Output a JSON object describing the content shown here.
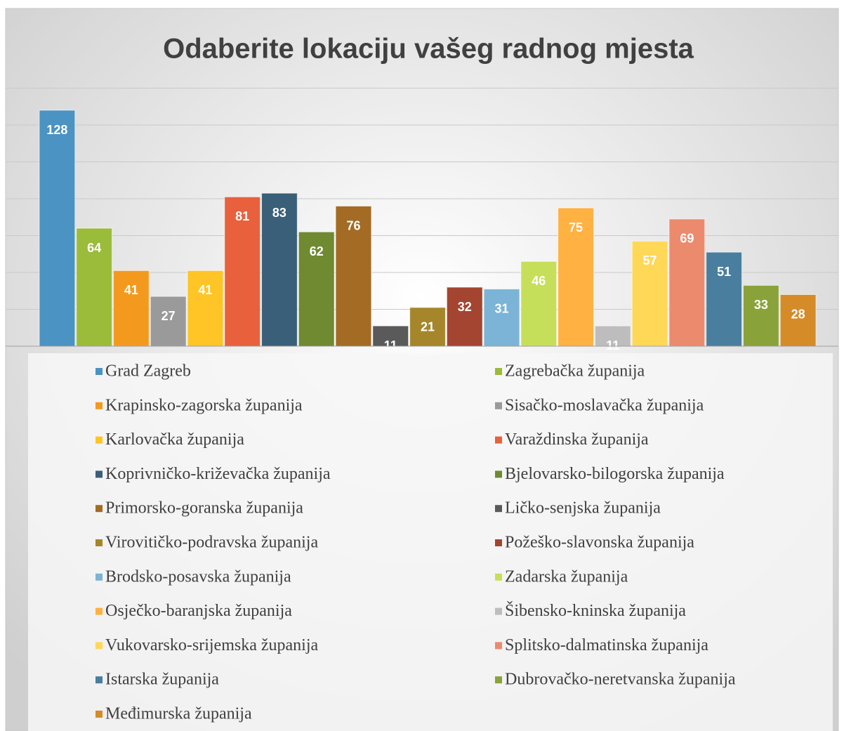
{
  "chart_data": {
    "type": "bar",
    "title": "Odaberite lokaciju vašeg radnog mjesta",
    "categories": [
      "Grad Zagreb",
      "Zagrebačka županija",
      "Krapinsko-zagorska županija",
      "Sisačko-moslavačka županija",
      "Karlovačka županija",
      "Varaždinska županija",
      "Koprivničko-križevačka županija",
      "Bjelovarsko-bilogorska županija",
      "Primorsko-goranska županija",
      "Ličko-senjska županija",
      "Virovitičko-podravska županija",
      "Požeško-slavonska županija",
      "Brodsko-posavska županija",
      "Zadarska županija",
      "Osječko-baranjska županija",
      "Šibensko-kninska županija",
      "Vukovarsko-srijemska županija",
      "Splitsko-dalmatinska županija",
      "Istarska županija",
      "Dubrovačko-neretvanska županija",
      "Međimurska županija"
    ],
    "values": [
      128,
      64,
      41,
      27,
      41,
      81,
      83,
      62,
      76,
      11,
      21,
      32,
      31,
      46,
      75,
      11,
      57,
      69,
      51,
      33,
      28
    ],
    "colors": [
      "#4a93c2",
      "#9bbb3a",
      "#f39a1e",
      "#9a9a9a",
      "#ffc425",
      "#e8613c",
      "#3a5f78",
      "#6f8a31",
      "#a36b24",
      "#5a5a5a",
      "#a6862a",
      "#a34530",
      "#7bb4d6",
      "#c6df5a",
      "#ffb142",
      "#bdbdbd",
      "#ffd858",
      "#ec8a6e",
      "#4a7e9e",
      "#8aa23a",
      "#d58b28"
    ],
    "ylim": [
      0,
      140
    ],
    "yticks": [
      0,
      20,
      40,
      60,
      80,
      100,
      120,
      140
    ],
    "grid": true
  }
}
